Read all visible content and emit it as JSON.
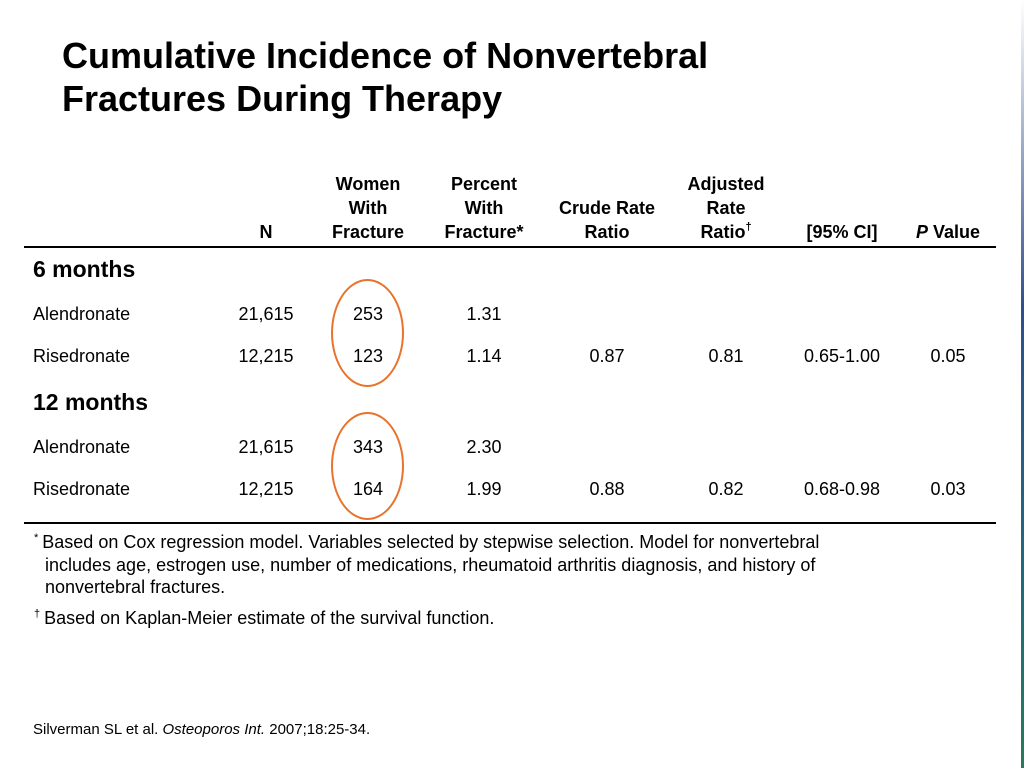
{
  "slide": {
    "title_line1": "Cumulative Incidence of Nonvertebral",
    "title_line2": "Fractures During Therapy"
  },
  "table": {
    "headers": {
      "n": "N",
      "women_1": "Women",
      "women_2": "With",
      "women_3": "Fracture",
      "percent_1": "Percent",
      "percent_2": "With",
      "percent_3": "Fracture*",
      "crude_1": "Crude Rate",
      "crude_2": "Ratio",
      "adjusted_1": "Adjusted",
      "adjusted_2": "Rate",
      "adjusted_3": "Ratio",
      "adjusted_mark": "†",
      "ci": "[95% CI]",
      "p_italic": "P",
      "p_rest": " Value"
    },
    "sections": [
      {
        "label": "6 months",
        "rows": [
          {
            "drug": "Alendronate",
            "n": "21,615",
            "women": "253",
            "percent": "1.31",
            "crude": "",
            "adjusted": "",
            "ci": "",
            "p": ""
          },
          {
            "drug": "Risedronate",
            "n": "12,215",
            "women": "123",
            "percent": "1.14",
            "crude": "0.87",
            "adjusted": "0.81",
            "ci": "0.65-1.00",
            "p": "0.05"
          }
        ]
      },
      {
        "label": "12 months",
        "rows": [
          {
            "drug": "Alendronate",
            "n": "21,615",
            "women": "343",
            "percent": "2.30",
            "crude": "",
            "adjusted": "",
            "ci": "",
            "p": ""
          },
          {
            "drug": "Risedronate",
            "n": "12,215",
            "women": "164",
            "percent": "1.99",
            "crude": "0.88",
            "adjusted": "0.82",
            "ci": "0.68-0.98",
            "p": "0.03"
          }
        ]
      }
    ]
  },
  "footnotes": {
    "star_mark": "*",
    "star_line1": "Based on Cox regression model. Variables selected by stepwise selection. Model for nonvertebral",
    "star_line2": "includes age, estrogen use, number of medications, rheumatoid arthritis diagnosis, and history of",
    "star_line3": "nonvertebral fractures.",
    "dagger_mark": "†",
    "dagger_text": "Based on Kaplan-Meier estimate of the survival function."
  },
  "citation": {
    "authors": "Silverman SL et al. ",
    "journal": "Osteoporos Int.",
    "details": " 2007;18:25-34."
  },
  "colors": {
    "highlight_ring": "#e8732a"
  }
}
